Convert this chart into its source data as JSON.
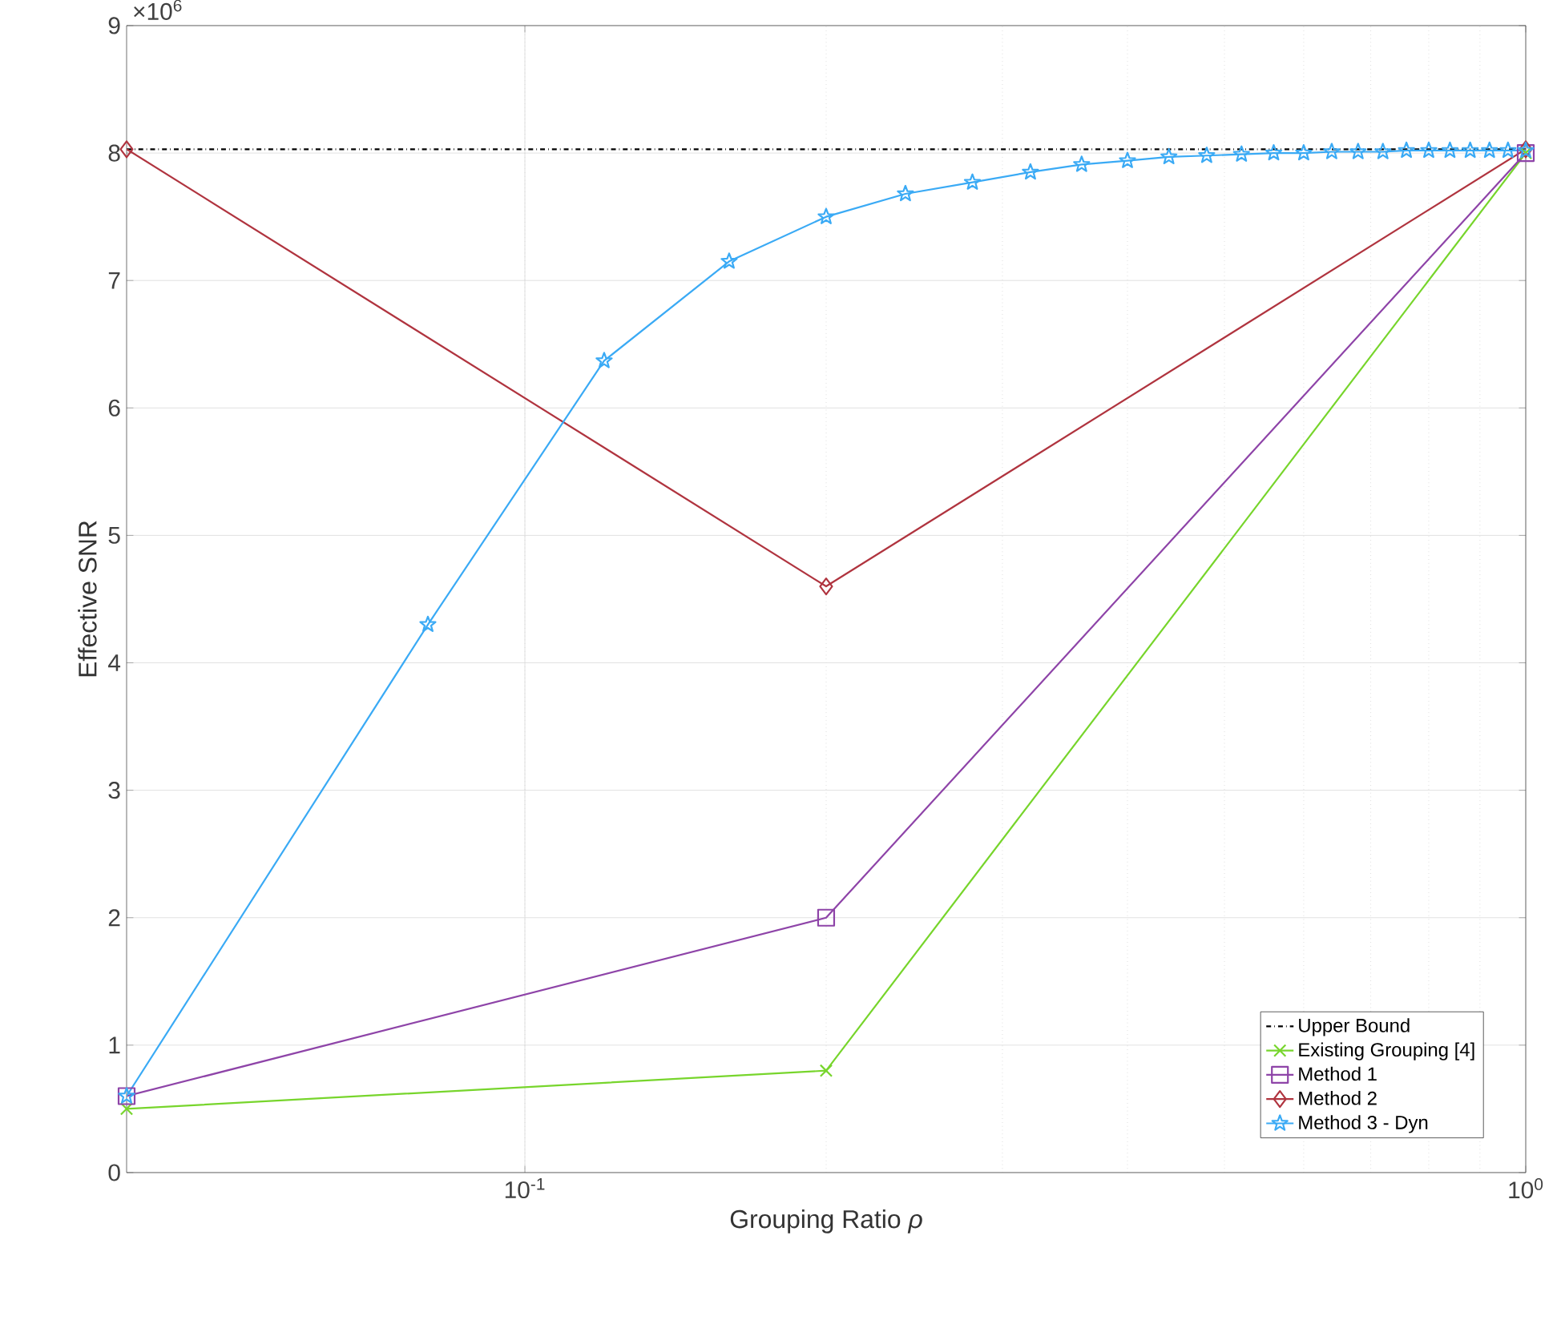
{
  "chart_data": {
    "type": "line",
    "xlabel": "Grouping Ratio *ρ*",
    "ylabel": "Effective SNR",
    "log": "x",
    "xlim": [
      0.04,
      1
    ],
    "ylim": [
      0,
      9
    ],
    "xticks": [
      {
        "value": 0.1,
        "label": "10$^{-1}$"
      },
      {
        "value": 1,
        "label": "10$^{0}$"
      }
    ],
    "yticks": [
      0,
      1,
      2,
      3,
      4,
      5,
      6,
      7,
      8,
      9
    ],
    "grid": true,
    "legend": "bottom right",
    "annotations": [
      "×10$^{6}$"
    ],
    "series": [
      {
        "name": "Upper Bound",
        "color": "#000000",
        "line_style": "dashdot",
        "marker": "none",
        "x": [
          0.04,
          1
        ],
        "values": [
          8.03,
          8.03
        ]
      },
      {
        "name": "Existing Grouping [4]",
        "color": "#77d52c",
        "marker": "cross",
        "x": [
          0.04,
          0.2,
          1
        ],
        "values": [
          0.5,
          0.8,
          8.0
        ]
      },
      {
        "name": "Method 1",
        "color": "#8e44a8",
        "marker": "square",
        "x": [
          0.04,
          0.2,
          1
        ],
        "values": [
          0.6,
          2.0,
          8.0
        ]
      },
      {
        "name": "Method 2",
        "color": "#b0343f",
        "marker": "diamond",
        "x": [
          0.04,
          0.2,
          1
        ],
        "values": [
          8.03,
          4.6,
          8.03
        ]
      },
      {
        "name": "Method 3 - Dyn",
        "color": "#3aaaf5",
        "marker": "star",
        "x": [
          0.04,
          0.08,
          0.12,
          0.16,
          0.2,
          0.24,
          0.28,
          0.32,
          0.36,
          0.4,
          0.44,
          0.48,
          0.52,
          0.56,
          0.6,
          0.64,
          0.68,
          0.72,
          0.76,
          0.8,
          0.84,
          0.88,
          0.92,
          0.96,
          1.0
        ],
        "values": [
          0.6,
          4.3,
          6.37,
          7.15,
          7.5,
          7.68,
          7.77,
          7.85,
          7.91,
          7.94,
          7.97,
          7.98,
          7.99,
          8.0,
          8.0,
          8.01,
          8.01,
          8.01,
          8.02,
          8.02,
          8.02,
          8.02,
          8.02,
          8.02,
          8.02
        ]
      }
    ]
  }
}
